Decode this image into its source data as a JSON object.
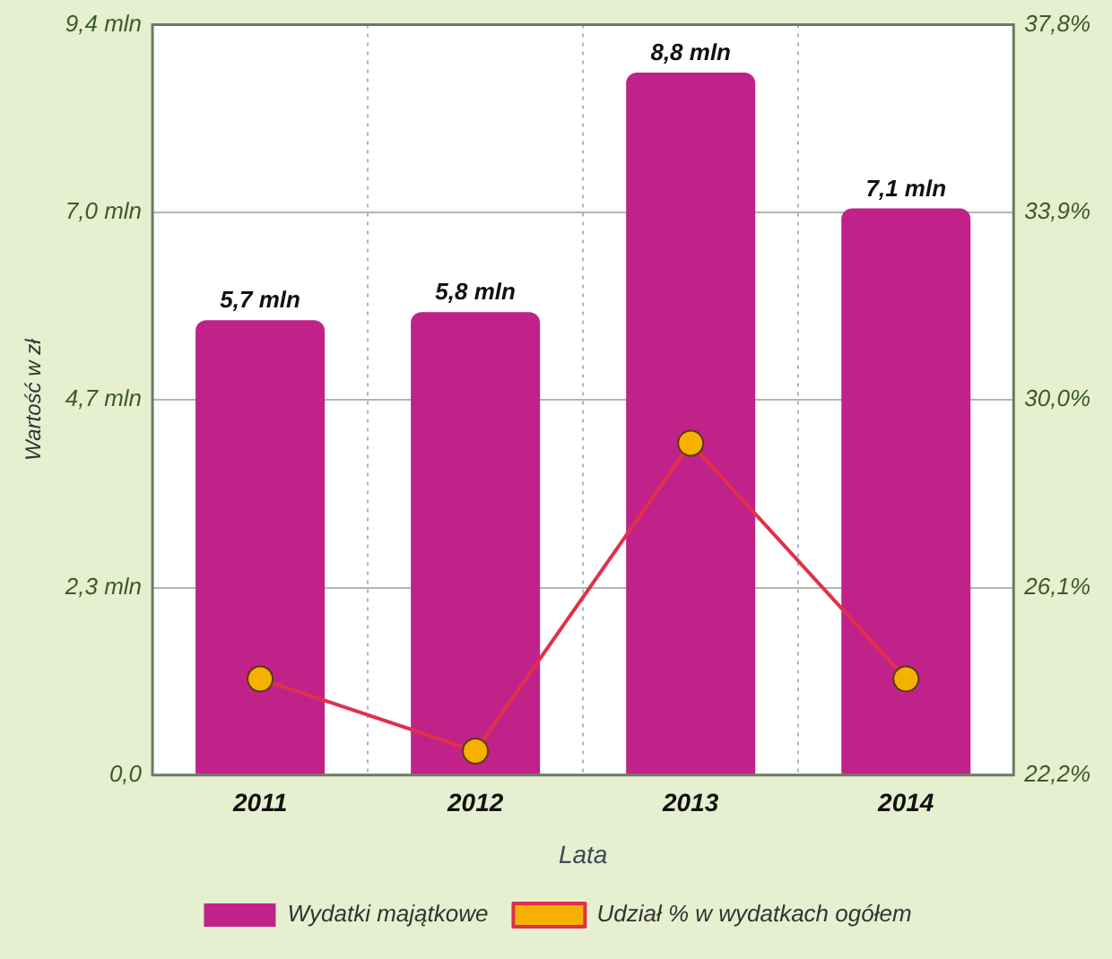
{
  "chart_data": {
    "type": "bar",
    "ylabel": "Wartość w zł",
    "xlabel": "Lata",
    "categories": [
      "2011",
      "2012",
      "2013",
      "2014"
    ],
    "series": [
      {
        "name": "Wydatki majątkowe",
        "color": "#c0228a",
        "values": [
          5.7,
          5.8,
          8.8,
          7.1
        ],
        "value_labels": [
          "5,7 mln",
          "5,8 mln",
          "8,8 mln",
          "7,1 mln"
        ]
      },
      {
        "name": "Udział % w wydatkach ogółem",
        "type": "line",
        "axis": "y2",
        "color": "#e0304a",
        "values": [
          24.2,
          22.7,
          29.1,
          24.2
        ]
      }
    ],
    "ylim": [
      0,
      9.4
    ],
    "yticks": [
      {
        "value": 0,
        "label": "0,0"
      },
      {
        "value": 2.35,
        "label": "2,3 mln"
      },
      {
        "value": 4.7,
        "label": "4,7 mln"
      },
      {
        "value": 7.05,
        "label": "7,0 mln"
      },
      {
        "value": 9.4,
        "label": "9,4 mln"
      }
    ],
    "y2lim": [
      22.2,
      37.8
    ],
    "y2ticks": [
      {
        "value": 22.2,
        "label": "22,2%"
      },
      {
        "value": 26.1,
        "label": "26,1%"
      },
      {
        "value": 30.0,
        "label": "30,0%"
      },
      {
        "value": 33.9,
        "label": "33,9%"
      },
      {
        "value": 37.8,
        "label": "37,8%"
      }
    ],
    "grid": true,
    "legend": "bottom",
    "marker": "circle",
    "line_style": "solid"
  }
}
